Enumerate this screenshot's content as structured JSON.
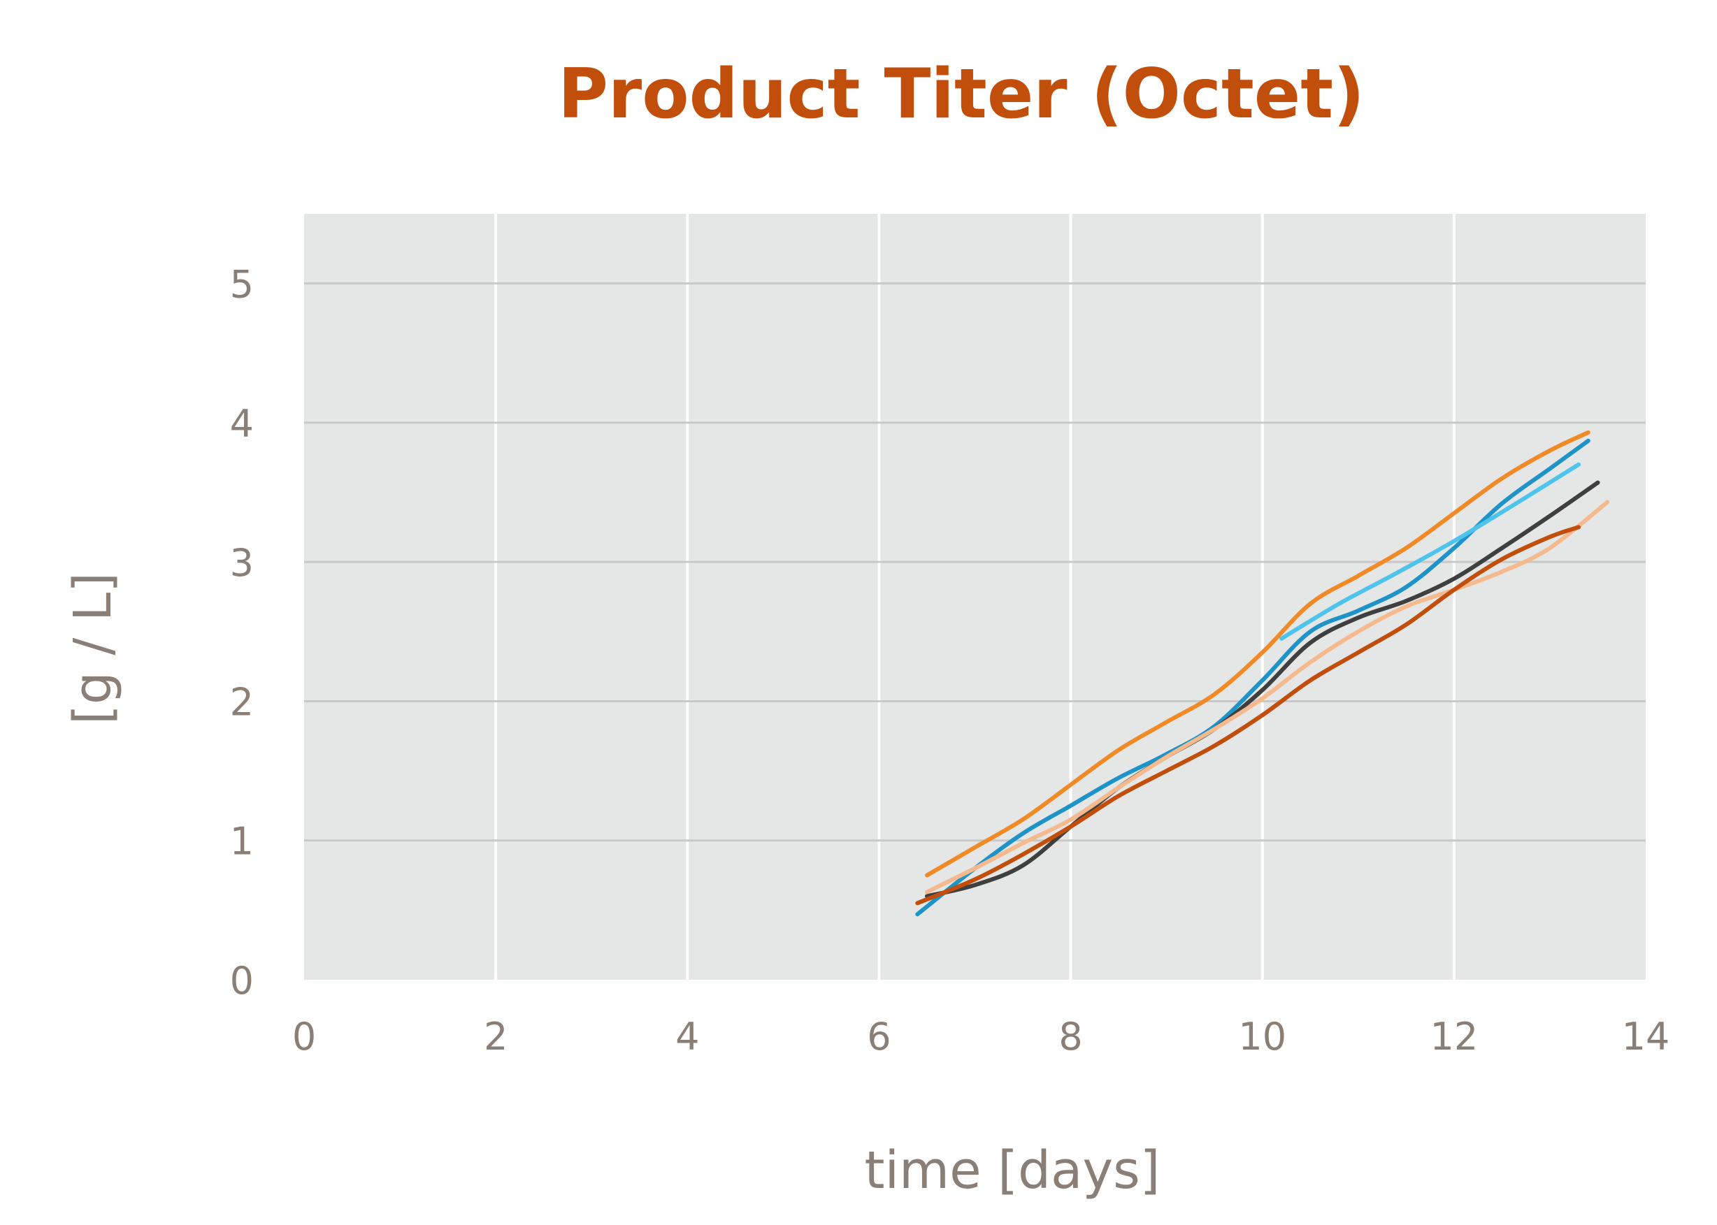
{
  "chart_data": {
    "type": "line",
    "title": "Product Titer (Octet)",
    "xlabel": "time [days]",
    "ylabel": "[g / L]",
    "xlim": [
      0,
      14
    ],
    "ylim": [
      0,
      5.5
    ],
    "xticks": [
      0,
      2,
      4,
      6,
      8,
      10,
      12,
      14
    ],
    "yticks": [
      0,
      1,
      2,
      3,
      4,
      5
    ],
    "grid": true,
    "legend": "none",
    "colors": {
      "title": "#c24e0b",
      "plot_background": "#e5e6e6",
      "h_grid": "#c8c8c8",
      "v_grid": "#ffffff"
    },
    "series": [
      {
        "color": "#ef8a26",
        "x": [
          6.5,
          7.0,
          7.5,
          8.0,
          8.5,
          9.0,
          9.5,
          10.0,
          10.5,
          11.0,
          11.5,
          12.0,
          12.5,
          13.0,
          13.4
        ],
        "y": [
          0.75,
          0.95,
          1.15,
          1.4,
          1.65,
          1.85,
          2.05,
          2.35,
          2.7,
          2.9,
          3.1,
          3.35,
          3.6,
          3.8,
          3.93
        ]
      },
      {
        "color": "#1e93c8",
        "x": [
          6.4,
          7.0,
          7.5,
          8.0,
          8.5,
          9.0,
          9.5,
          10.0,
          10.5,
          11.0,
          11.5,
          12.0,
          12.5,
          13.0,
          13.4
        ],
        "y": [
          0.47,
          0.8,
          1.05,
          1.25,
          1.45,
          1.62,
          1.82,
          2.15,
          2.5,
          2.65,
          2.82,
          3.1,
          3.42,
          3.67,
          3.87
        ]
      },
      {
        "color": "#4ec3eb",
        "x": [
          10.2,
          10.8,
          11.4,
          12.0,
          12.6,
          13.3
        ],
        "y": [
          2.45,
          2.7,
          2.92,
          3.15,
          3.4,
          3.7
        ]
      },
      {
        "color": "#3f3f3f",
        "x": [
          6.5,
          7.0,
          7.5,
          8.0,
          8.5,
          9.0,
          9.5,
          10.0,
          10.5,
          11.0,
          11.5,
          12.0,
          12.5,
          13.0,
          13.5
        ],
        "y": [
          0.6,
          0.68,
          0.82,
          1.1,
          1.38,
          1.6,
          1.8,
          2.08,
          2.42,
          2.6,
          2.72,
          2.88,
          3.1,
          3.33,
          3.57
        ]
      },
      {
        "color": "#f5b98e",
        "x": [
          6.5,
          7.0,
          7.5,
          8.0,
          8.5,
          9.0,
          9.5,
          10.0,
          10.5,
          11.0,
          11.5,
          12.0,
          12.5,
          13.0,
          13.6
        ],
        "y": [
          0.63,
          0.8,
          0.98,
          1.15,
          1.38,
          1.6,
          1.8,
          2.02,
          2.28,
          2.5,
          2.68,
          2.8,
          2.93,
          3.1,
          3.43
        ]
      },
      {
        "color": "#c24e0b",
        "x": [
          6.4,
          7.0,
          7.5,
          8.0,
          8.5,
          9.0,
          9.5,
          10.0,
          10.5,
          11.0,
          11.5,
          12.0,
          12.5,
          13.0,
          13.3
        ],
        "y": [
          0.55,
          0.72,
          0.9,
          1.1,
          1.32,
          1.5,
          1.68,
          1.9,
          2.15,
          2.35,
          2.55,
          2.8,
          3.02,
          3.18,
          3.25
        ]
      }
    ]
  }
}
